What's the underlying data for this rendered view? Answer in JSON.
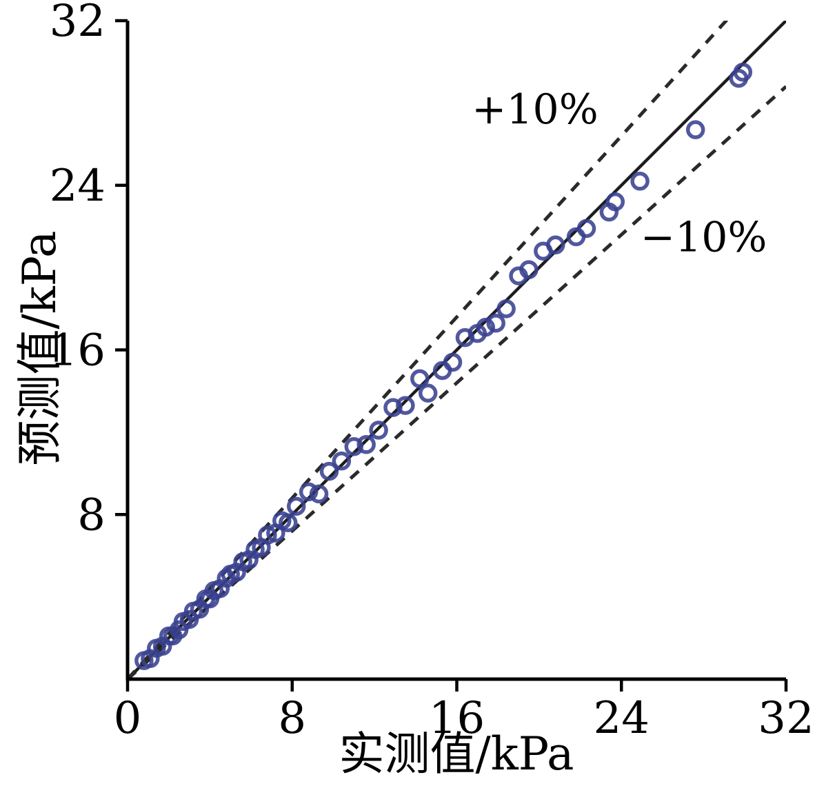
{
  "chart_data": {
    "type": "scatter",
    "title": "",
    "xlabel": "实测值/kPa",
    "ylabel": "预测值/kPa",
    "xlim": [
      0,
      32
    ],
    "ylim": [
      0,
      32
    ],
    "xticks": [
      0,
      8,
      16,
      24,
      32
    ],
    "yticks": [
      8,
      16,
      24,
      32
    ],
    "grid": false,
    "legend": "none",
    "series": [
      {
        "name": "predicted-vs-measured",
        "marker": "open-circle",
        "color": "#39418f",
        "points": [
          [
            0.8,
            0.9
          ],
          [
            1.1,
            1.0
          ],
          [
            1.4,
            1.5
          ],
          [
            1.7,
            1.6
          ],
          [
            2.0,
            2.1
          ],
          [
            2.2,
            2.1
          ],
          [
            2.5,
            2.4
          ],
          [
            2.7,
            2.8
          ],
          [
            3.0,
            2.9
          ],
          [
            3.2,
            3.3
          ],
          [
            3.5,
            3.4
          ],
          [
            3.8,
            3.9
          ],
          [
            4.0,
            3.9
          ],
          [
            4.2,
            4.3
          ],
          [
            4.5,
            4.4
          ],
          [
            4.8,
            4.9
          ],
          [
            5.0,
            5.1
          ],
          [
            5.3,
            5.2
          ],
          [
            5.6,
            5.7
          ],
          [
            5.9,
            5.8
          ],
          [
            6.2,
            6.3
          ],
          [
            6.5,
            6.4
          ],
          [
            6.8,
            7.0
          ],
          [
            7.2,
            7.1
          ],
          [
            7.5,
            7.7
          ],
          [
            7.8,
            7.6
          ],
          [
            8.2,
            8.4
          ],
          [
            8.8,
            9.1
          ],
          [
            9.3,
            9.0
          ],
          [
            9.8,
            10.1
          ],
          [
            10.4,
            10.6
          ],
          [
            11.0,
            11.3
          ],
          [
            11.6,
            11.4
          ],
          [
            12.2,
            12.1
          ],
          [
            12.9,
            13.2
          ],
          [
            13.5,
            13.3
          ],
          [
            14.2,
            14.6
          ],
          [
            14.6,
            13.9
          ],
          [
            15.3,
            15.0
          ],
          [
            15.8,
            15.4
          ],
          [
            16.4,
            16.6
          ],
          [
            17.0,
            16.8
          ],
          [
            17.4,
            17.1
          ],
          [
            17.9,
            17.3
          ],
          [
            18.4,
            18.0
          ],
          [
            19.0,
            19.6
          ],
          [
            19.5,
            19.9
          ],
          [
            20.2,
            20.8
          ],
          [
            20.8,
            21.1
          ],
          [
            21.8,
            21.5
          ],
          [
            22.3,
            21.9
          ],
          [
            23.4,
            22.7
          ],
          [
            23.7,
            23.2
          ],
          [
            24.9,
            24.2
          ],
          [
            27.6,
            26.7
          ],
          [
            29.7,
            29.2
          ],
          [
            29.9,
            29.5
          ]
        ]
      }
    ],
    "reference_lines": [
      {
        "name": "identity-line",
        "style": "solid",
        "slope": 1.0,
        "intercept": 0,
        "color": "#1c1c1c"
      },
      {
        "name": "plus-10-line",
        "style": "dashed",
        "slope": 1.1,
        "intercept": 0,
        "color": "#2a2a2a"
      },
      {
        "name": "minus-10-line",
        "style": "dashed",
        "slope": 0.9,
        "intercept": 0,
        "color": "#2a2a2a"
      }
    ],
    "annotations": [
      {
        "name": "plus-10-label",
        "text": "+10%",
        "x": 19.8,
        "y": 27.0
      },
      {
        "name": "minus-10-label",
        "text": "−10%",
        "x": 28.0,
        "y": 20.8
      }
    ],
    "colors": {
      "axis": "#000000",
      "background": "#ffffff",
      "marker": "#39418f"
    }
  }
}
